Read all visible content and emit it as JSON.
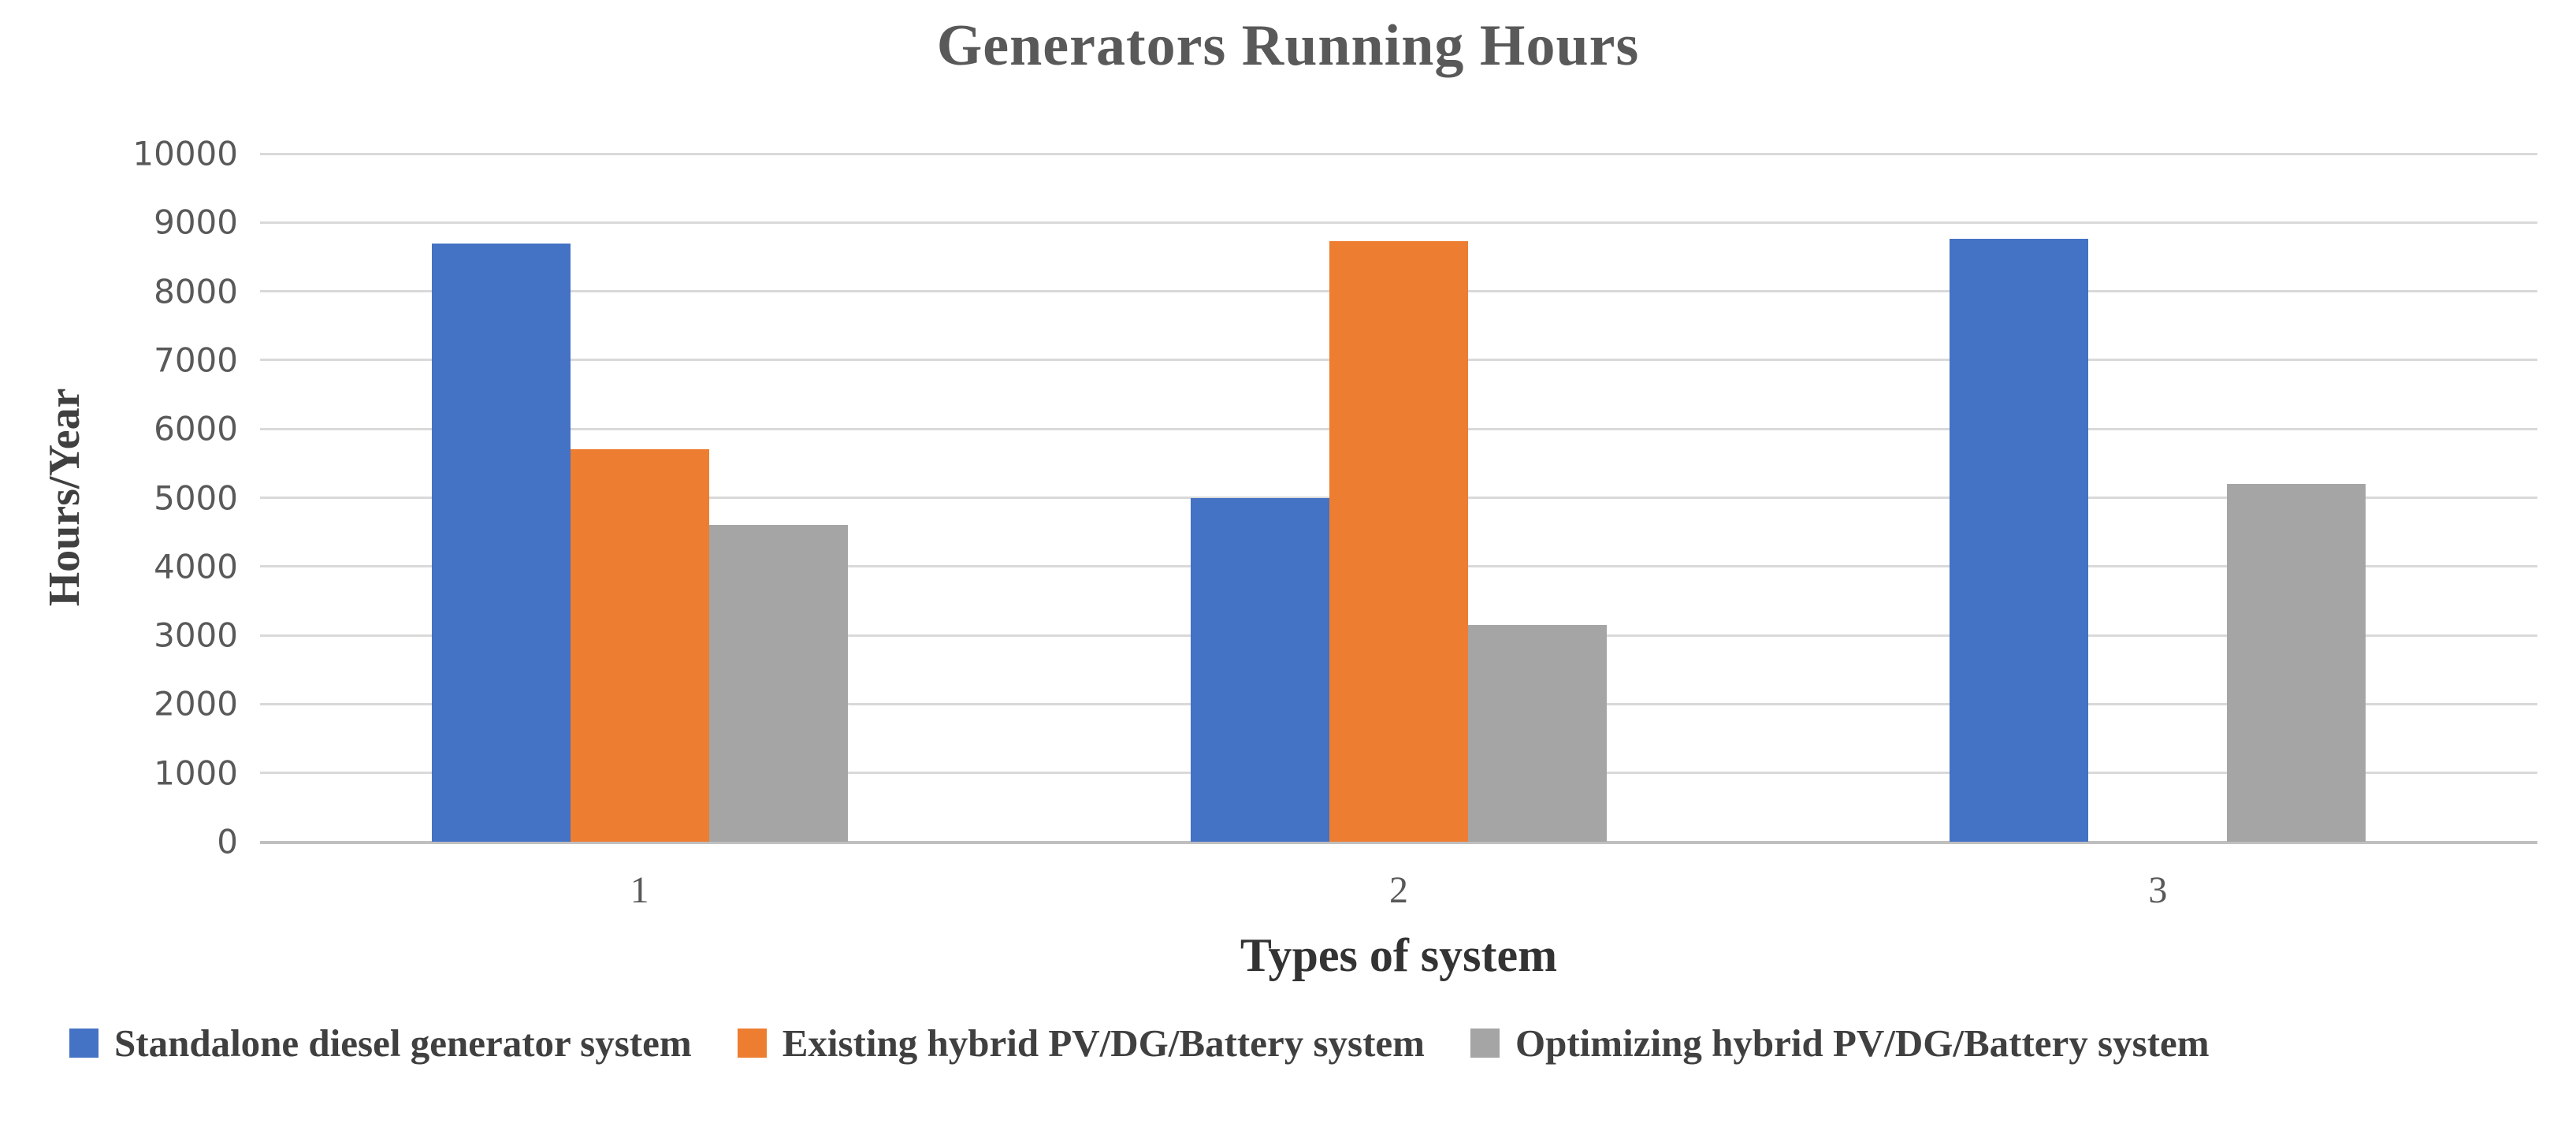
{
  "title": "Generators Running Hours",
  "chart_data": {
    "type": "bar",
    "title": "Generators Running Hours",
    "xlabel": "Types of system",
    "ylabel": "Hours/Year",
    "categories": [
      "1",
      "2",
      "3"
    ],
    "series": [
      {
        "name": "Standalone diesel generator system",
        "color": "#4472C4",
        "values": [
          8700,
          5000,
          8760
        ]
      },
      {
        "name": "Existing hybrid PV/DG/Battery system",
        "color": "#ED7D31",
        "values": [
          5700,
          8730,
          0
        ]
      },
      {
        "name": "Optimizing hybrid PV/DG/Battery system",
        "color": "#A5A5A5",
        "values": [
          4600,
          3150,
          5200
        ]
      }
    ],
    "ylim": [
      0,
      10000
    ],
    "ytick_step": 1000,
    "grid": true,
    "legend_position": "bottom"
  },
  "colors": {
    "gridline": "#D9D9D9",
    "axis_line": "#BFBFBF",
    "title_text": "#595959",
    "tick_text": "#595959",
    "axis_title_text": "#404040",
    "legend_text": "#404040",
    "background": "#FFFFFF"
  }
}
